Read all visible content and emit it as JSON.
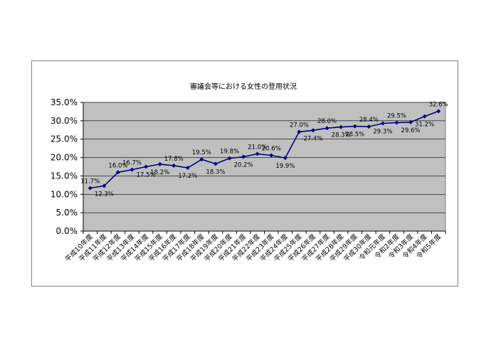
{
  "chart_data": {
    "type": "line",
    "title": "審議会等における女性の登用状況",
    "xlabel": "",
    "ylabel": "",
    "ylim": [
      0,
      35
    ],
    "yticks": [
      "0.0%",
      "5.0%",
      "10.0%",
      "15.0%",
      "20.0%",
      "25.0%",
      "30.0%",
      "35.0%"
    ],
    "grid": true,
    "legend": "none",
    "categories": [
      "平成10年度",
      "平成11年度",
      "平成12年度",
      "平成13年度",
      "平成14年度",
      "平成15年度",
      "平成16年度",
      "平成17年度",
      "平成18年度",
      "平成19年度",
      "平成20年度",
      "平成21年度",
      "平成22年度",
      "平成23年度",
      "平成24年度",
      "平成25年度",
      "平成26年度",
      "平成27年度",
      "平成28年度",
      "平成29年度",
      "平成30年度",
      "令和元年度",
      "令和2年度",
      "令和3年度",
      "令和4年度",
      "令和5年度"
    ],
    "values": [
      11.7,
      12.3,
      16.0,
      16.7,
      17.5,
      18.2,
      17.8,
      17.2,
      19.5,
      18.3,
      19.8,
      20.2,
      21.0,
      20.6,
      19.9,
      27.0,
      27.4,
      28.0,
      28.3,
      28.5,
      28.4,
      29.3,
      29.5,
      29.6,
      31.2,
      32.6
    ],
    "data_labels": [
      "11.7%",
      "12.3%",
      "16.0%",
      "16.7%",
      "17.5%",
      "18.2%",
      "17.8%",
      "17.2%",
      "19.5%",
      "18.3%",
      "19.8%",
      "20.2%",
      "21.0%",
      "20.6%",
      "19.9%",
      "27.0%",
      "27.4%",
      "28.0%",
      "28.3%",
      "28.5%",
      "28.4%",
      "29.3%",
      "29.5%",
      "29.6%",
      "31.2%",
      "32.6%"
    ],
    "label_side": [
      "above",
      "below",
      "above",
      "above",
      "below",
      "below",
      "above",
      "below",
      "above",
      "below",
      "above",
      "below",
      "above",
      "above",
      "below",
      "above",
      "below",
      "above",
      "below",
      "below",
      "above",
      "below",
      "above",
      "below",
      "below",
      "above"
    ],
    "colors": {
      "plot_bg": "#c0c0c0",
      "line": "#000080",
      "gridline": "#000000",
      "frame": "#808080"
    }
  }
}
